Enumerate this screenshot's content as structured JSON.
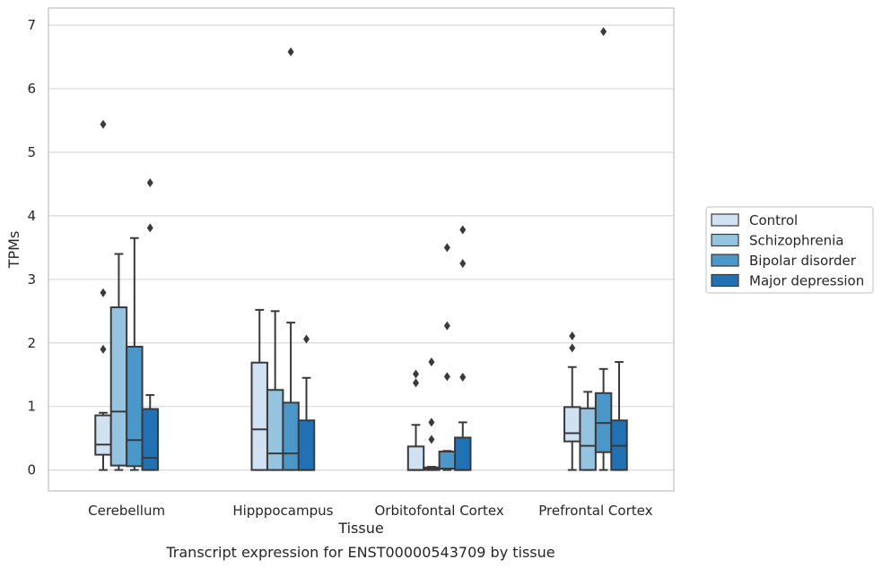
{
  "caption": "Transcript expression for ENST00000543709 by tissue",
  "colors": {
    "Control": "#d0e1f2",
    "Schizophrenia": "#94c4df",
    "Bipolar disorder": "#4a98c9",
    "Major depression": "#2171b5",
    "edge": "#3a3a3a",
    "grid": "#d9d9d9",
    "frame": "#cccccc"
  },
  "chart_data": {
    "type": "box",
    "xlabel": "Tissue",
    "ylabel": "TPMs",
    "ylim": [
      -0.33,
      7.27
    ],
    "yticks": [
      0,
      1,
      2,
      3,
      4,
      5,
      6,
      7
    ],
    "grid": "horizontal",
    "legend_placement": "right",
    "categories": [
      "Cerebellum",
      "Hipppocampus",
      "Orbitofontal Cortex",
      "Prefrontal Cortex"
    ],
    "series": [
      {
        "name": "Control",
        "boxes": [
          {
            "whislo": 0.0,
            "q1": 0.24,
            "med": 0.4,
            "q3": 0.86,
            "whishi": 0.9,
            "fliers": [
              1.9,
              2.79,
              5.44
            ]
          },
          {
            "whislo": 0.0,
            "q1": 0.0,
            "med": 0.64,
            "q3": 1.69,
            "whishi": 2.52,
            "fliers": []
          },
          {
            "whislo": 0.0,
            "q1": 0.0,
            "med": 0.0,
            "q3": 0.37,
            "whishi": 0.71,
            "fliers": [
              1.37,
              1.51
            ]
          },
          {
            "whislo": 0.0,
            "q1": 0.45,
            "med": 0.58,
            "q3": 0.99,
            "whishi": 1.62,
            "fliers": [
              1.92,
              2.11
            ]
          }
        ]
      },
      {
        "name": "Schizophrenia",
        "boxes": [
          {
            "whislo": 0.0,
            "q1": 0.07,
            "med": 0.92,
            "q3": 2.56,
            "whishi": 3.4,
            "fliers": []
          },
          {
            "whislo": 0.0,
            "q1": 0.0,
            "med": 0.26,
            "q3": 1.26,
            "whishi": 2.5,
            "fliers": []
          },
          {
            "whislo": 0.0,
            "q1": 0.0,
            "med": 0.02,
            "q3": 0.04,
            "whishi": 0.05,
            "fliers": [
              0.48,
              0.75,
              1.7
            ]
          },
          {
            "whislo": 0.0,
            "q1": 0.0,
            "med": 0.38,
            "q3": 0.97,
            "whishi": 1.23,
            "fliers": []
          }
        ]
      },
      {
        "name": "Bipolar disorder",
        "boxes": [
          {
            "whislo": 0.0,
            "q1": 0.06,
            "med": 0.47,
            "q3": 1.94,
            "whishi": 3.65,
            "fliers": []
          },
          {
            "whislo": 0.0,
            "q1": 0.0,
            "med": 0.26,
            "q3": 1.06,
            "whishi": 2.32,
            "fliers": [
              6.58
            ]
          },
          {
            "whislo": 0.0,
            "q1": 0.02,
            "med": 0.02,
            "q3": 0.29,
            "whishi": 0.3,
            "fliers": [
              1.47,
              2.27,
              3.5
            ]
          },
          {
            "whislo": 0.0,
            "q1": 0.28,
            "med": 0.74,
            "q3": 1.21,
            "whishi": 1.59,
            "fliers": [
              6.9
            ]
          }
        ]
      },
      {
        "name": "Major depression",
        "boxes": [
          {
            "whislo": 0.0,
            "q1": 0.0,
            "med": 0.19,
            "q3": 0.96,
            "whishi": 1.18,
            "fliers": [
              3.81,
              4.52
            ]
          },
          {
            "whislo": 0.0,
            "q1": 0.0,
            "med": 0.0,
            "q3": 0.78,
            "whishi": 1.45,
            "fliers": [
              2.06
            ]
          },
          {
            "whislo": 0.0,
            "q1": 0.0,
            "med": 0.0,
            "q3": 0.51,
            "whishi": 0.75,
            "fliers": [
              1.46,
              3.25,
              3.78
            ]
          },
          {
            "whislo": 0.0,
            "q1": 0.0,
            "med": 0.38,
            "q3": 0.78,
            "whishi": 1.7,
            "fliers": []
          }
        ]
      }
    ]
  }
}
